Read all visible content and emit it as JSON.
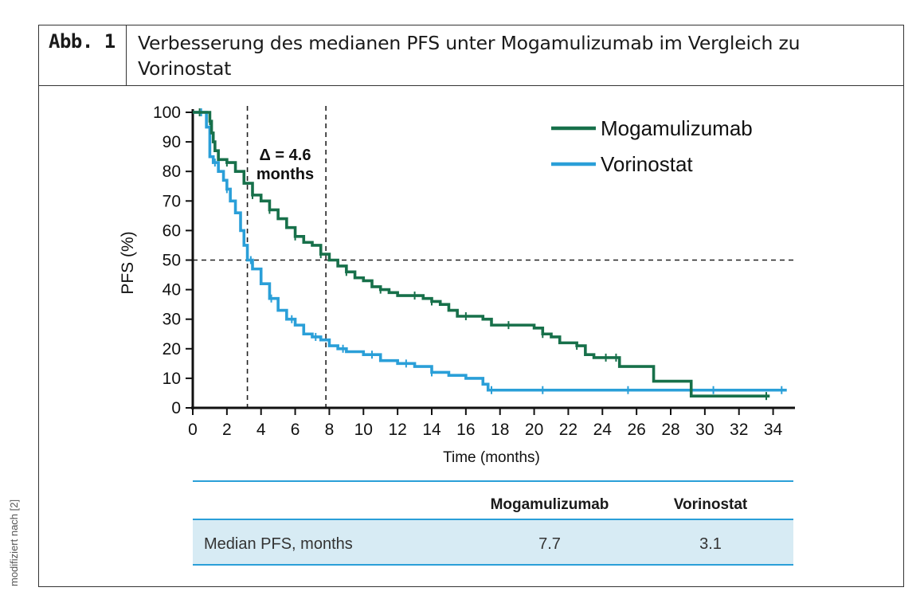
{
  "header": {
    "label": "Abb. 1",
    "title": "Verbesserung des medianen PFS unter Mogamulizumab im Vergleich zu Vorinostat"
  },
  "side_note": "modifiziert nach [2]",
  "colors": {
    "mogamulizumab": "#17704a",
    "vorinostat": "#2a9fd8",
    "table_band": "#d7ebf4",
    "table_rule": "#2a9fd8"
  },
  "chart_data": {
    "type": "line",
    "xlabel": "Time (months)",
    "ylabel": "PFS (%)",
    "xlim": [
      0,
      35
    ],
    "ylim": [
      0,
      100
    ],
    "xticks": [
      0,
      2,
      4,
      6,
      8,
      10,
      12,
      14,
      16,
      18,
      20,
      22,
      24,
      26,
      28,
      30,
      32,
      34
    ],
    "yticks": [
      0,
      10,
      20,
      30,
      40,
      50,
      60,
      70,
      80,
      90,
      100
    ],
    "legend_position": "top-right",
    "annotation": {
      "lines": [
        "Δ = 4.6",
        "months"
      ]
    },
    "reference_lines": {
      "horizontal_y": 50,
      "vertical_x": [
        3.2,
        7.8
      ]
    },
    "series": [
      {
        "name": "Mogamulizumab",
        "x": [
          0,
          0.6,
          1.0,
          1.1,
          1.2,
          1.3,
          1.5,
          2.0,
          2.5,
          3.0,
          3.5,
          4.0,
          4.5,
          5.0,
          5.5,
          6.0,
          6.5,
          7.0,
          7.5,
          8.0,
          8.5,
          9.0,
          9.5,
          10.0,
          10.5,
          11.0,
          11.5,
          12.0,
          12.5,
          13.0,
          13.5,
          14.0,
          14.5,
          15.0,
          15.5,
          16.0,
          16.5,
          17.0,
          17.5,
          18.0,
          19.0,
          20.0,
          20.5,
          21.0,
          21.5,
          22.0,
          22.5,
          23.0,
          23.5,
          24.0,
          25.0,
          26.5,
          27.0,
          28.0,
          29.0,
          29.2,
          30.0,
          33.8
        ],
        "y": [
          100,
          100,
          97,
          93,
          90,
          87,
          84,
          83,
          80,
          76,
          72,
          70,
          67,
          64,
          61,
          58,
          56,
          55,
          52,
          50,
          48,
          46,
          44,
          43,
          41,
          40,
          39,
          38,
          38,
          38,
          37,
          36,
          35,
          33,
          31,
          31,
          31,
          30,
          28,
          28,
          28,
          27,
          25,
          24,
          22,
          22,
          21,
          18,
          17,
          17,
          14,
          14,
          9,
          9,
          9,
          4,
          4,
          4
        ],
        "censor_x": [
          0.4,
          1.0,
          2.0,
          3.5,
          4.5,
          6.0,
          7.5,
          9.0,
          11.0,
          13.0,
          14.0,
          16.0,
          18.5,
          20.5,
          22.5,
          24.2,
          24.8,
          33.6
        ]
      },
      {
        "name": "Vorinostat",
        "x": [
          0,
          0.8,
          1.0,
          1.2,
          1.5,
          1.8,
          2.0,
          2.2,
          2.5,
          2.8,
          3.0,
          3.2,
          3.5,
          4.0,
          4.5,
          5.0,
          5.5,
          6.0,
          6.5,
          7.0,
          7.5,
          8.0,
          8.5,
          9.0,
          10.0,
          11.0,
          12.0,
          13.0,
          14.0,
          15.0,
          16.0,
          17.0,
          17.3,
          18.0,
          20.0,
          25.0,
          30.0,
          34.8
        ],
        "y": [
          100,
          95,
          85,
          83,
          80,
          77,
          74,
          70,
          66,
          60,
          55,
          50,
          47,
          42,
          37,
          33,
          30,
          28,
          25,
          24,
          23,
          21,
          20,
          19,
          18,
          16,
          15,
          14,
          12,
          11,
          10,
          8,
          6,
          6,
          6,
          6,
          6,
          6
        ],
        "censor_x": [
          0.5,
          1.3,
          2.0,
          3.4,
          4.6,
          5.8,
          7.2,
          8.8,
          10.5,
          12.5,
          14.0,
          17.5,
          20.5,
          25.5,
          30.5,
          34.5
        ]
      }
    ]
  },
  "table": {
    "col_headers": [
      "Mogamulizumab",
      "Vorinostat"
    ],
    "rows": [
      {
        "label": "Median PFS, months",
        "values": [
          "7.7",
          "3.1"
        ]
      }
    ]
  }
}
